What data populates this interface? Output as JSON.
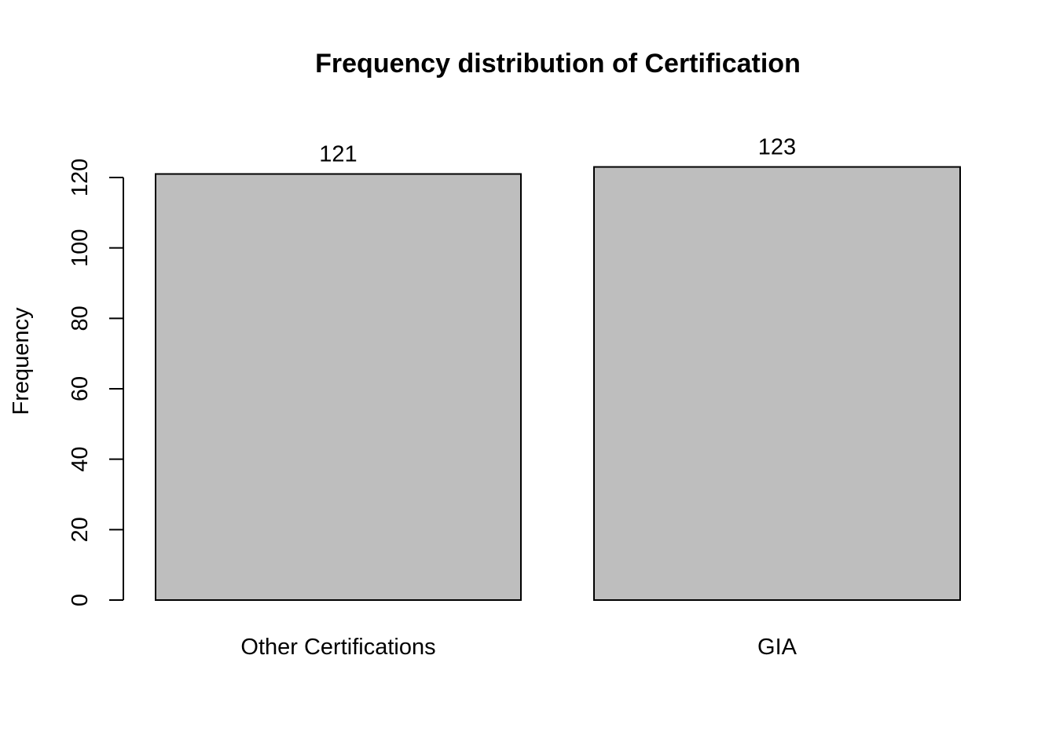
{
  "chart_data": {
    "type": "bar",
    "title": "Frequency distribution of Certification",
    "xlabel": "",
    "ylabel": "Frequency",
    "categories": [
      "Other Certifications",
      "GIA"
    ],
    "values": [
      121,
      123
    ],
    "data_labels": [
      "121",
      "123"
    ],
    "ylim": [
      0,
      120
    ],
    "yticks": [
      0,
      20,
      40,
      60,
      80,
      100,
      120
    ],
    "ytick_labels": [
      "0",
      "20",
      "40",
      "60",
      "80",
      "100",
      "120"
    ],
    "grid": false,
    "legend": "none",
    "bar_color": "#bebebe",
    "edge_color": "#000000"
  }
}
